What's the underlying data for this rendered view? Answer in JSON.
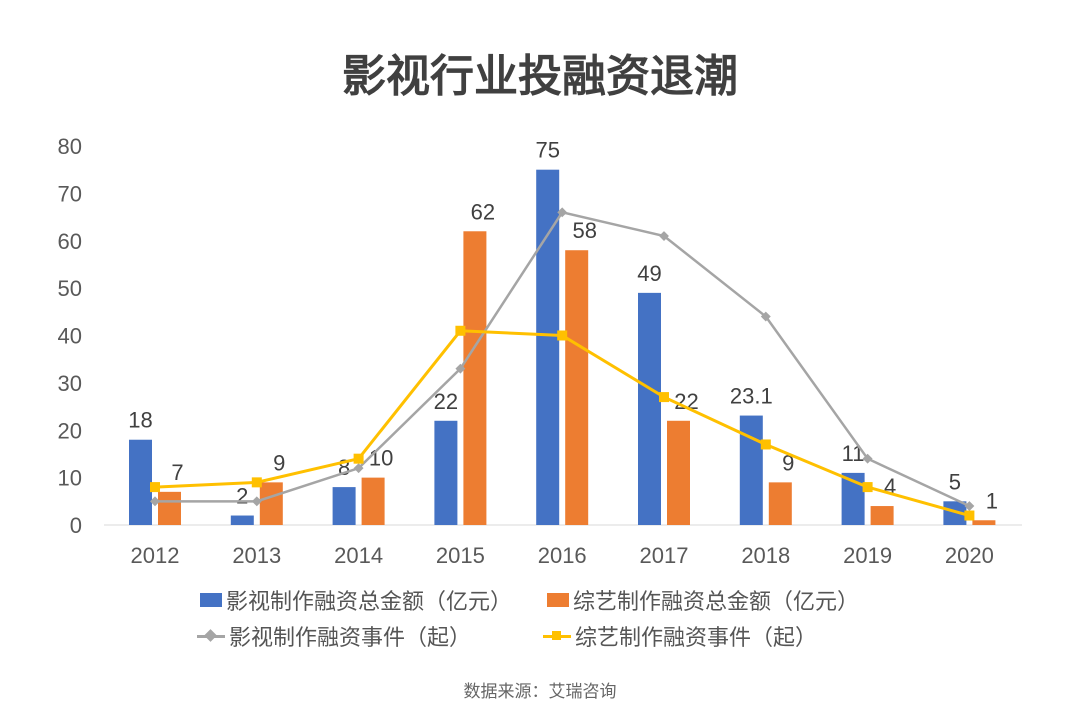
{
  "chart_data": {
    "type": "bar",
    "title": "影视行业投融资退潮",
    "categories": [
      "2012",
      "2013",
      "2014",
      "2015",
      "2016",
      "2017",
      "2018",
      "2019",
      "2020"
    ],
    "ylim": [
      0,
      80
    ],
    "yticks": [
      "0",
      "10",
      "20",
      "30",
      "40",
      "50",
      "60",
      "70",
      "80"
    ],
    "grid": false,
    "legend_position": "bottom",
    "series": [
      {
        "name": "影视制作融资总金额（亿元）",
        "type": "bar",
        "color": "#4472C4",
        "values": [
          18,
          2,
          8,
          22,
          75,
          49,
          23.1,
          11,
          5
        ],
        "labels": [
          "18",
          "2",
          "8",
          "22",
          "75",
          "49",
          "23.1",
          "11",
          "5"
        ]
      },
      {
        "name": "综艺制作融资总金额（亿元）",
        "type": "bar",
        "color": "#ED7D31",
        "values": [
          7,
          9,
          10,
          62,
          58,
          22,
          9,
          4,
          1
        ],
        "labels": [
          "7",
          "9",
          "10",
          "62",
          "58",
          "22",
          "9",
          "4",
          "1"
        ]
      },
      {
        "name": "影视制作融资事件（起）",
        "type": "line",
        "marker": "diamond",
        "color": "#A5A5A5",
        "values": [
          5,
          5,
          12,
          33,
          66,
          61,
          44,
          14,
          4
        ]
      },
      {
        "name": "综艺制作融资事件（起）",
        "type": "line",
        "marker": "square",
        "color": "#FFC000",
        "values": [
          8,
          9,
          14,
          41,
          40,
          27,
          17,
          8,
          2
        ]
      }
    ]
  },
  "source": "数据来源：艾瑞咨询"
}
